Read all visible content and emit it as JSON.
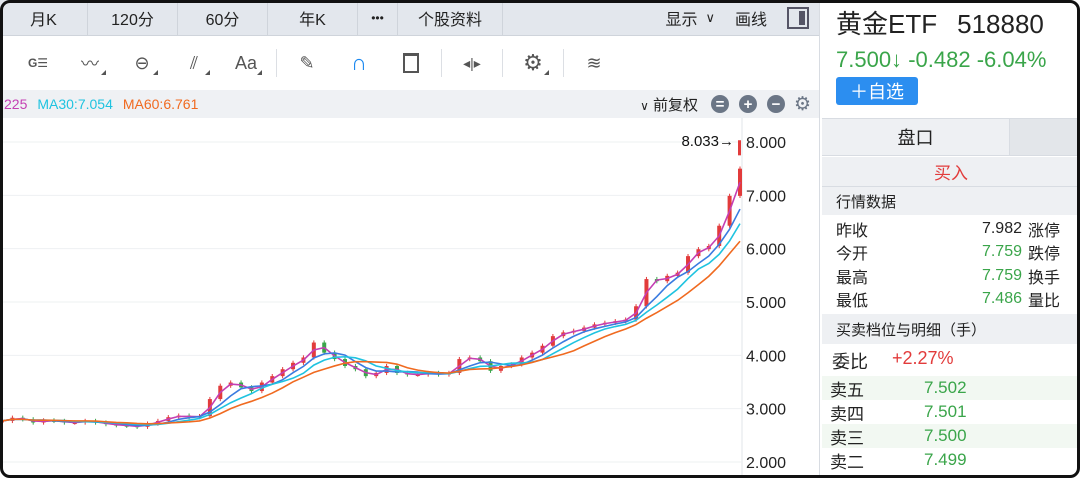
{
  "tabs": [
    "月K",
    "120分",
    "60分",
    "年K",
    "•••",
    "个股资料"
  ],
  "tabs_right": {
    "display": "显示",
    "display_icon": "chevron-down-icon",
    "draw": "画线",
    "panel_icon": "sidebar-toggle-icon"
  },
  "toolbar": [
    "indicator-icon",
    "trend-line-icon",
    "cycle-icon",
    "fork-icon",
    "text-icon",
    "eraser-icon",
    "magnet-icon",
    "trash-icon",
    "zoom-range-icon",
    "settings-icon",
    "layers-icon"
  ],
  "ma": {
    "ma_partial": "225",
    "ma30": "MA30:7.054",
    "ma60": "MA60:6.761",
    "colors": {
      "ma_partial": "#c43fb3",
      "ma30": "#1fc3e0",
      "ma60": "#f06a20"
    }
  },
  "adjust": "前复权",
  "chart_data": {
    "type": "candlestick",
    "y_ticks": [
      "8.000",
      "7.000",
      "6.000",
      "5.000",
      "4.000",
      "3.000",
      "2.000"
    ],
    "ylim": [
      2,
      8
    ],
    "max_label": "8.033→",
    "max_value": 8.033,
    "grid": true,
    "close": [
      2.77,
      2.83,
      2.8,
      2.74,
      2.78,
      2.77,
      2.74,
      2.74,
      2.77,
      2.74,
      2.71,
      2.69,
      2.68,
      2.66,
      2.72,
      2.77,
      2.84,
      2.87,
      2.84,
      2.86,
      3.18,
      3.43,
      3.49,
      3.4,
      3.33,
      3.49,
      3.61,
      3.74,
      3.86,
      3.96,
      4.24,
      4.05,
      3.93,
      3.8,
      3.74,
      3.61,
      3.67,
      3.8,
      3.67,
      3.64,
      3.64,
      3.67,
      3.64,
      3.67,
      3.93,
      3.96,
      3.89,
      3.71,
      3.8,
      3.83,
      3.96,
      4.05,
      4.18,
      4.36,
      4.43,
      4.46,
      4.52,
      4.58,
      4.61,
      4.64,
      4.67,
      4.92,
      5.43,
      5.39,
      5.49,
      5.55,
      5.86,
      5.99,
      6.05,
      6.43,
      6.99,
      7.5
    ]
  },
  "stock": {
    "name": "黄金ETF",
    "code": "518880",
    "price": "7.500↓",
    "change": "-0.482",
    "pct": "-6.04%",
    "add": "＋自选"
  },
  "panel_tab": "盘口",
  "buy": "买入",
  "market_header": "行情数据",
  "quotes": [
    {
      "label": "昨收",
      "value": "7.982",
      "right": "涨停",
      "color": "black"
    },
    {
      "label": "今开",
      "value": "7.759",
      "right": "跌停",
      "color": "green"
    },
    {
      "label": "最高",
      "value": "7.759",
      "right": "换手",
      "color": "green"
    },
    {
      "label": "最低",
      "value": "7.486",
      "right": "量比",
      "color": "green"
    }
  ],
  "book_header": "买卖档位与明细（手）",
  "weibi": {
    "label": "委比",
    "value": "+2.27%"
  },
  "orderbook": [
    {
      "label": "卖五",
      "price": "7.502"
    },
    {
      "label": "卖四",
      "price": "7.501"
    },
    {
      "label": "卖三",
      "price": "7.500"
    },
    {
      "label": "卖二",
      "price": "7.499"
    }
  ]
}
